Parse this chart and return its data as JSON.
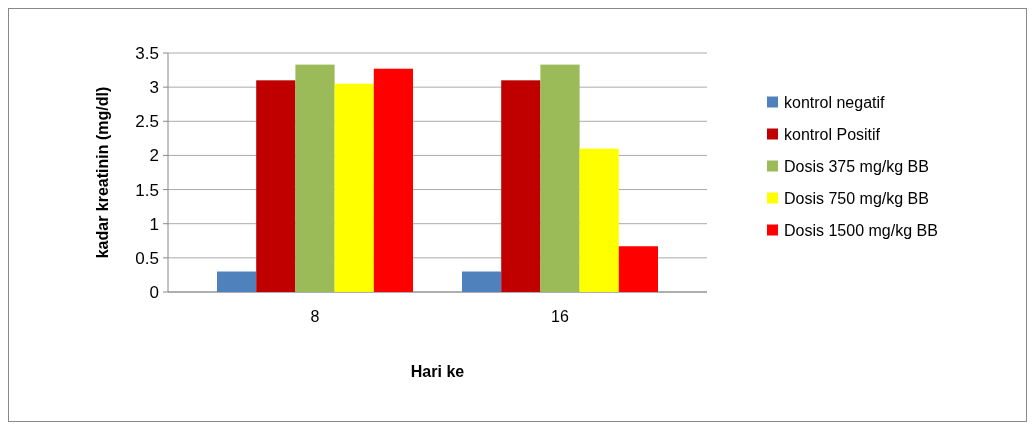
{
  "chart_data": {
    "type": "bar",
    "xlabel": "Hari ke",
    "ylabel": "kadar kreatinin (mg/dl)",
    "categories": [
      "8",
      "16"
    ],
    "series": [
      {
        "name": "kontrol negatif",
        "color": "#4f81bd",
        "values": [
          0.3,
          0.3
        ]
      },
      {
        "name": "kontrol Positif",
        "color": "#c00000",
        "values": [
          3.1,
          3.1
        ]
      },
      {
        "name": "Dosis 375 mg/kg BB",
        "color": "#9bbb59",
        "values": [
          3.33,
          3.33
        ]
      },
      {
        "name": "Dosis 750 mg/kg BB",
        "color": "#ffff00",
        "values": [
          3.05,
          2.1
        ]
      },
      {
        "name": "Dosis 1500 mg/kg BB",
        "color": "#ff0000",
        "values": [
          3.27,
          0.67
        ]
      }
    ],
    "ylim": [
      0,
      3.5
    ],
    "yticks": [
      0,
      0.5,
      1,
      1.5,
      2,
      2.5,
      3,
      3.5
    ],
    "grid": "y",
    "legend": "right"
  }
}
